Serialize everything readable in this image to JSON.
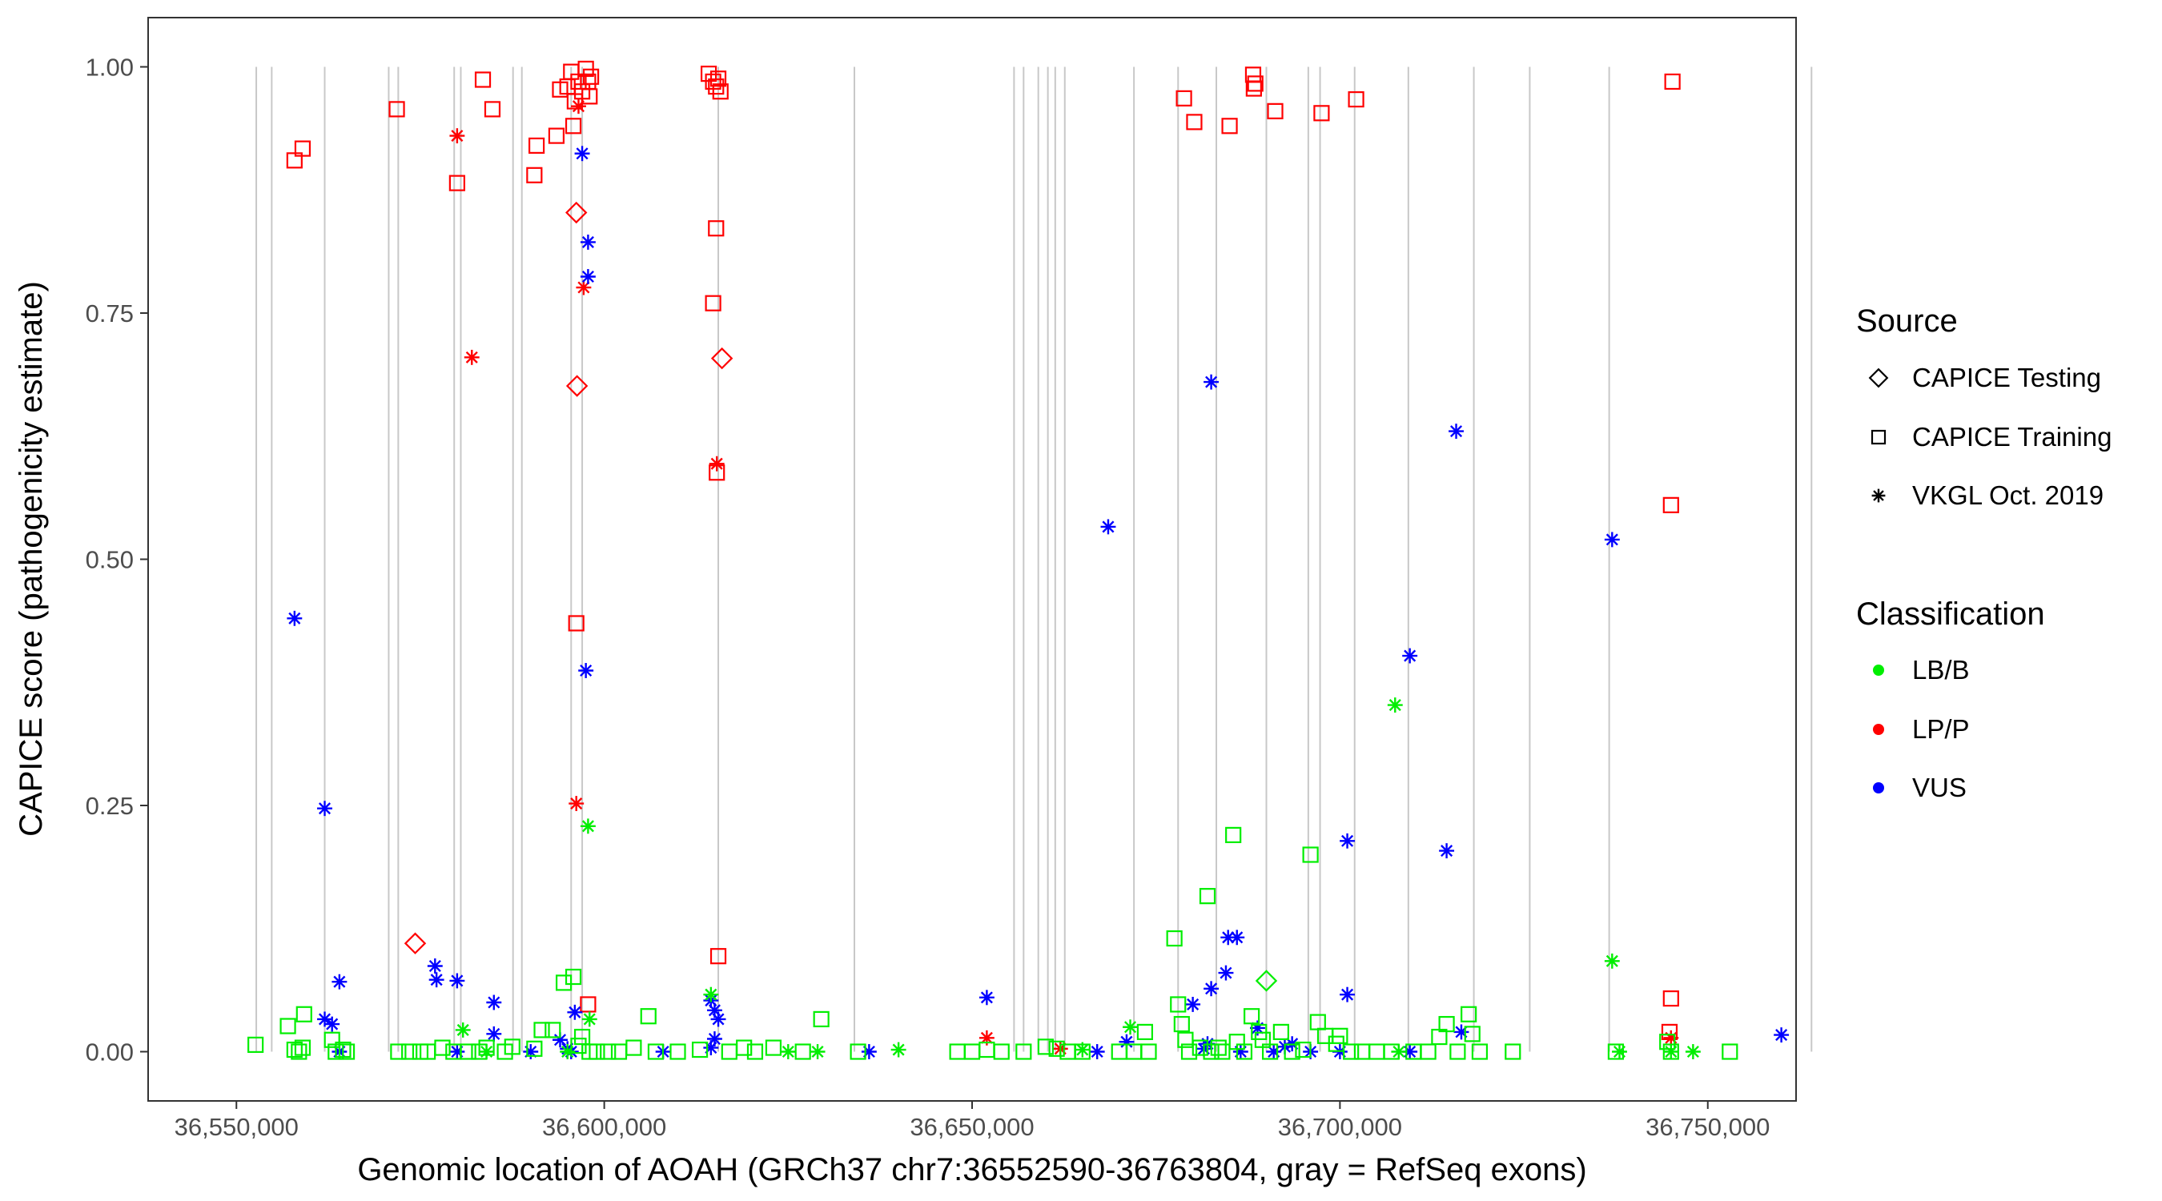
{
  "chart_data": {
    "type": "scatter",
    "title": "",
    "xlabel": "Genomic location of AOAH (GRCh37 chr7:36552590-36763804, gray = RefSeq exons)",
    "ylabel": "CAPICE score (pathogenicity estimate)",
    "xlim": [
      36538000,
      36762000
    ],
    "ylim": [
      -0.05,
      1.05
    ],
    "x_ticks": [
      36550000,
      36600000,
      36650000,
      36700000,
      36750000
    ],
    "x_tick_labels": [
      "36,550,000",
      "36,600,000",
      "36,650,000",
      "36,700,000",
      "36,750,000"
    ],
    "y_ticks": [
      0,
      0.25,
      0.5,
      0.75,
      1.0
    ],
    "y_tick_labels": [
      "0.00",
      "0.25",
      "0.50",
      "0.75",
      "1.00"
    ],
    "grid": false,
    "exon_lines": [
      36552700,
      36554800,
      36562000,
      36570700,
      36572000,
      36579600,
      36580500,
      36587600,
      36588800,
      36595500,
      36597000,
      36615500,
      36634000,
      36655700,
      36657000,
      36659000,
      36660300,
      36661300,
      36662600,
      36672000,
      36678000,
      36683200,
      36690000,
      36695700,
      36697300,
      36702000,
      36709300,
      36718200,
      36725800,
      36736600,
      36764100
    ],
    "legend": {
      "source_title": "Source",
      "source_items": [
        {
          "label": "CAPICE Testing",
          "shape": "diamond"
        },
        {
          "label": "CAPICE Training",
          "shape": "square"
        },
        {
          "label": "VKGL Oct. 2019",
          "shape": "asterisk"
        }
      ],
      "class_title": "Classification",
      "class_items": [
        {
          "label": "LB/B",
          "color": "#00ee00"
        },
        {
          "label": "LP/P",
          "color": "#ff0000"
        },
        {
          "label": "VUS",
          "color": "#0000ff"
        }
      ]
    },
    "series": [
      {
        "name": "LP/P - CAPICE Training",
        "class": "LP/P",
        "source": "CAPICE Training",
        "points": [
          [
            36557900,
            0.905
          ],
          [
            36559000,
            0.917
          ],
          [
            36571800,
            0.957
          ],
          [
            36580000,
            0.882
          ],
          [
            36583500,
            0.987
          ],
          [
            36584800,
            0.957
          ],
          [
            36590500,
            0.89
          ],
          [
            36590800,
            0.92
          ],
          [
            36593500,
            0.93
          ],
          [
            36594000,
            0.977
          ],
          [
            36595000,
            0.98
          ],
          [
            36595500,
            0.995
          ],
          [
            36595800,
            0.94
          ],
          [
            36596000,
            0.965
          ],
          [
            36596500,
            0.985
          ],
          [
            36597000,
            0.975
          ],
          [
            36597500,
            0.998
          ],
          [
            36598000,
            0.97
          ],
          [
            36597800,
            0.985
          ],
          [
            36598200,
            0.99
          ],
          [
            36614200,
            0.993
          ],
          [
            36614800,
            0.985
          ],
          [
            36615200,
            0.98
          ],
          [
            36615500,
            0.988
          ],
          [
            36615800,
            0.975
          ],
          [
            36615200,
            0.836
          ],
          [
            36614800,
            0.76
          ],
          [
            36615300,
            0.588
          ],
          [
            36615500,
            0.097
          ],
          [
            36596200,
            0.435
          ],
          [
            36597800,
            0.048
          ],
          [
            36678800,
            0.968
          ],
          [
            36680200,
            0.944
          ],
          [
            36685000,
            0.94
          ],
          [
            36688200,
            0.992
          ],
          [
            36688300,
            0.978
          ],
          [
            36688500,
            0.983
          ],
          [
            36691200,
            0.955
          ],
          [
            36697500,
            0.953
          ],
          [
            36702200,
            0.967
          ],
          [
            36745200,
            0.985
          ],
          [
            36745000,
            0.555
          ],
          [
            36745000,
            0.054
          ],
          [
            36744800,
            0.02
          ]
        ]
      },
      {
        "name": "LP/P - CAPICE Testing",
        "class": "LP/P",
        "source": "CAPICE Testing",
        "points": [
          [
            36596200,
            0.852
          ],
          [
            36596300,
            0.676
          ],
          [
            36616000,
            0.704
          ],
          [
            36574300,
            0.11
          ]
        ]
      },
      {
        "name": "LP/P - VKGL Oct. 2019",
        "class": "LP/P",
        "source": "VKGL Oct. 2019",
        "points": [
          [
            36580000,
            0.93
          ],
          [
            36582000,
            0.705
          ],
          [
            36597200,
            0.776
          ],
          [
            36596200,
            0.252
          ],
          [
            36615300,
            0.597
          ],
          [
            36596500,
            0.96
          ],
          [
            36652000,
            0.014
          ],
          [
            36662000,
            0.003
          ],
          [
            36745000,
            0.014
          ]
        ]
      },
      {
        "name": "VUS - VKGL Oct. 2019",
        "class": "VUS",
        "source": "VKGL Oct. 2019",
        "points": [
          [
            36597000,
            0.912
          ],
          [
            36597800,
            0.822
          ],
          [
            36597800,
            0.787
          ],
          [
            36597500,
            0.387
          ],
          [
            36557900,
            0.44
          ],
          [
            36562000,
            0.247
          ],
          [
            36562000,
            0.033
          ],
          [
            36563000,
            0.028
          ],
          [
            36564000,
            0.071
          ],
          [
            36564000,
            0.0
          ],
          [
            36577000,
            0.087
          ],
          [
            36577200,
            0.073
          ],
          [
            36580000,
            0.072
          ],
          [
            36585000,
            0.05
          ],
          [
            36585000,
            0.018
          ],
          [
            36580000,
            0.0
          ],
          [
            36590000,
            0.0
          ],
          [
            36594000,
            0.012
          ],
          [
            36595000,
            0.003
          ],
          [
            36595500,
            0.0
          ],
          [
            36596000,
            0.04
          ],
          [
            36608000,
            0.0
          ],
          [
            36614500,
            0.052
          ],
          [
            36615000,
            0.042
          ],
          [
            36615500,
            0.033
          ],
          [
            36615000,
            0.013
          ],
          [
            36614500,
            0.004
          ],
          [
            36636000,
            0.0
          ],
          [
            36652000,
            0.055
          ],
          [
            36667000,
            0.0
          ],
          [
            36668500,
            0.533
          ],
          [
            36671000,
            0.01
          ],
          [
            36680000,
            0.048
          ],
          [
            36682500,
            0.68
          ],
          [
            36682500,
            0.064
          ],
          [
            36684500,
            0.08
          ],
          [
            36684800,
            0.116
          ],
          [
            36686000,
            0.116
          ],
          [
            36681500,
            0.003
          ],
          [
            36682000,
            0.008
          ],
          [
            36686500,
            0.0
          ],
          [
            36688800,
            0.024
          ],
          [
            36691000,
            0.0
          ],
          [
            36692500,
            0.005
          ],
          [
            36693500,
            0.008
          ],
          [
            36696000,
            0.0
          ],
          [
            36700000,
            0.0
          ],
          [
            36701000,
            0.214
          ],
          [
            36701000,
            0.058
          ],
          [
            36709500,
            0.402
          ],
          [
            36709500,
            0.0
          ],
          [
            36714500,
            0.204
          ],
          [
            36715800,
            0.63
          ],
          [
            36716500,
            0.02
          ],
          [
            36737000,
            0.52
          ],
          [
            36760000,
            0.017
          ]
        ]
      },
      {
        "name": "LB/B - CAPICE Testing",
        "class": "LB/B",
        "source": "CAPICE Testing",
        "points": [
          [
            36690000,
            0.072
          ]
        ]
      },
      {
        "name": "LB/B - VKGL Oct. 2019",
        "class": "LB/B",
        "source": "VKGL Oct. 2019",
        "points": [
          [
            36597800,
            0.229
          ],
          [
            36707500,
            0.352
          ],
          [
            36737000,
            0.092
          ],
          [
            36580800,
            0.022
          ],
          [
            36614500,
            0.058
          ],
          [
            36598000,
            0.033
          ],
          [
            36625000,
            0.0
          ],
          [
            36629000,
            0.0
          ],
          [
            36640000,
            0.002
          ],
          [
            36671500,
            0.025
          ],
          [
            36708000,
            0.0
          ],
          [
            36738000,
            0.0
          ],
          [
            36745000,
            0.0
          ],
          [
            36748000,
            0.0
          ],
          [
            36665000,
            0.002
          ],
          [
            36595000,
            0.0
          ],
          [
            36584000,
            0.0
          ]
        ]
      },
      {
        "name": "LB/B - CAPICE Training",
        "class": "LB/B",
        "source": "CAPICE Training",
        "points": [
          [
            36552600,
            0.007
          ],
          [
            36557000,
            0.026
          ],
          [
            36557900,
            0.002
          ],
          [
            36558500,
            0.0
          ],
          [
            36559000,
            0.004
          ],
          [
            36559200,
            0.038
          ],
          [
            36563000,
            0.012
          ],
          [
            36563500,
            0.0
          ],
          [
            36564500,
            0.002
          ],
          [
            36565000,
            0.0
          ],
          [
            36572000,
            0.0
          ],
          [
            36573500,
            0.0
          ],
          [
            36575000,
            0.0
          ],
          [
            36576000,
            0.0
          ],
          [
            36578000,
            0.004
          ],
          [
            36579500,
            0.0
          ],
          [
            36581500,
            0.0
          ],
          [
            36583000,
            0.0
          ],
          [
            36584000,
            0.004
          ],
          [
            36586500,
            0.0
          ],
          [
            36587500,
            0.005
          ],
          [
            36590500,
            0.003
          ],
          [
            36591500,
            0.022
          ],
          [
            36593000,
            0.022
          ],
          [
            36594500,
            0.07
          ],
          [
            36595800,
            0.076
          ],
          [
            36596500,
            0.006
          ],
          [
            36597000,
            0.015
          ],
          [
            36598000,
            0.0
          ],
          [
            36599000,
            0.0
          ],
          [
            36600500,
            0.0
          ],
          [
            36602000,
            0.0
          ],
          [
            36604000,
            0.004
          ],
          [
            36606000,
            0.036
          ],
          [
            36607000,
            0.0
          ],
          [
            36610000,
            0.0
          ],
          [
            36613000,
            0.002
          ],
          [
            36617000,
            0.0
          ],
          [
            36619000,
            0.004
          ],
          [
            36620500,
            0.0
          ],
          [
            36623000,
            0.004
          ],
          [
            36627000,
            0.0
          ],
          [
            36629500,
            0.033
          ],
          [
            36634500,
            0.0
          ],
          [
            36648000,
            0.0
          ],
          [
            36650000,
            0.0
          ],
          [
            36652000,
            0.002
          ],
          [
            36654000,
            0.0
          ],
          [
            36657000,
            0.0
          ],
          [
            36660000,
            0.005
          ],
          [
            36661500,
            0.003
          ],
          [
            36663000,
            0.0
          ],
          [
            36665000,
            0.0
          ],
          [
            36670000,
            0.0
          ],
          [
            36672000,
            0.0
          ],
          [
            36673500,
            0.02
          ],
          [
            36674000,
            0.0
          ],
          [
            36677500,
            0.115
          ],
          [
            36678000,
            0.048
          ],
          [
            36678500,
            0.028
          ],
          [
            36679000,
            0.012
          ],
          [
            36679500,
            0.0
          ],
          [
            36681000,
            0.004
          ],
          [
            36682000,
            0.158
          ],
          [
            36682500,
            0.0
          ],
          [
            36683500,
            0.004
          ],
          [
            36684000,
            0.0
          ],
          [
            36685500,
            0.22
          ],
          [
            36686000,
            0.01
          ],
          [
            36687000,
            0.0
          ],
          [
            36688000,
            0.036
          ],
          [
            36689000,
            0.02
          ],
          [
            36689500,
            0.012
          ],
          [
            36690500,
            0.0
          ],
          [
            36692000,
            0.02
          ],
          [
            36693500,
            0.0
          ],
          [
            36695000,
            0.002
          ],
          [
            36696000,
            0.2
          ],
          [
            36697000,
            0.03
          ],
          [
            36698000,
            0.016
          ],
          [
            36699500,
            0.008
          ],
          [
            36700000,
            0.016
          ],
          [
            36701500,
            0.0
          ],
          [
            36703000,
            0.0
          ],
          [
            36705000,
            0.0
          ],
          [
            36707000,
            0.0
          ],
          [
            36710000,
            0.0
          ],
          [
            36712000,
            0.0
          ],
          [
            36713500,
            0.015
          ],
          [
            36714500,
            0.028
          ],
          [
            36716000,
            0.0
          ],
          [
            36717500,
            0.038
          ],
          [
            36718000,
            0.018
          ],
          [
            36719000,
            0.0
          ],
          [
            36723500,
            0.0
          ],
          [
            36737500,
            0.0
          ],
          [
            36744500,
            0.01
          ],
          [
            36745000,
            0.0
          ],
          [
            36753000,
            0.0
          ]
        ]
      }
    ]
  }
}
